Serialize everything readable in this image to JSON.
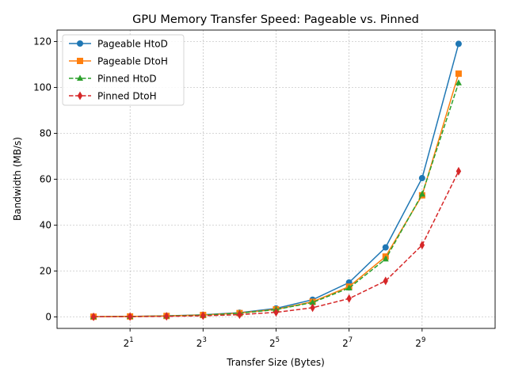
{
  "chart_data": {
    "type": "line",
    "title": "GPU Memory Transfer Speed: Pageable vs. Pinned",
    "xlabel": "Transfer Size (Bytes)",
    "ylabel": "Bandwidth (MB/s)",
    "x_scale": "log2",
    "x": [
      1,
      2,
      4,
      8,
      16,
      32,
      64,
      128,
      256,
      512,
      1024
    ],
    "xlim": [
      0.5,
      2048
    ],
    "ylim": [
      -5,
      125
    ],
    "x_ticks": [
      {
        "value": 2,
        "base": "2",
        "exp": "1"
      },
      {
        "value": 8,
        "base": "2",
        "exp": "3"
      },
      {
        "value": 32,
        "base": "2",
        "exp": "5"
      },
      {
        "value": 128,
        "base": "2",
        "exp": "7"
      },
      {
        "value": 512,
        "base": "2",
        "exp": "9"
      }
    ],
    "y_ticks": [
      0,
      20,
      40,
      60,
      80,
      100,
      120
    ],
    "grid": true,
    "legend_position": "upper-left",
    "series": [
      {
        "name": "Pageable HtoD",
        "color": "#1f77b4",
        "marker": "circle",
        "dash": "solid",
        "values": [
          0.12,
          0.23,
          0.47,
          0.93,
          1.86,
          3.7,
          7.5,
          15.0,
          30.3,
          60.5,
          119.0
        ]
      },
      {
        "name": "Pageable DtoH",
        "color": "#ff7f0e",
        "marker": "square",
        "dash": "solid",
        "values": [
          0.1,
          0.21,
          0.42,
          0.84,
          1.67,
          3.3,
          6.6,
          13.2,
          26.3,
          53.0,
          106.0
        ]
      },
      {
        "name": "Pinned HtoD",
        "color": "#2ca02c",
        "marker": "triangle",
        "dash": "dashed",
        "values": [
          0.1,
          0.2,
          0.4,
          0.8,
          1.6,
          3.2,
          6.3,
          12.6,
          25.2,
          53.5,
          102.0
        ]
      },
      {
        "name": "Pinned DtoH",
        "color": "#d62728",
        "marker": "diamond",
        "dash": "dashed",
        "values": [
          0.06,
          0.12,
          0.25,
          0.5,
          1.0,
          2.0,
          4.0,
          8.0,
          15.7,
          31.3,
          63.5
        ]
      }
    ]
  }
}
